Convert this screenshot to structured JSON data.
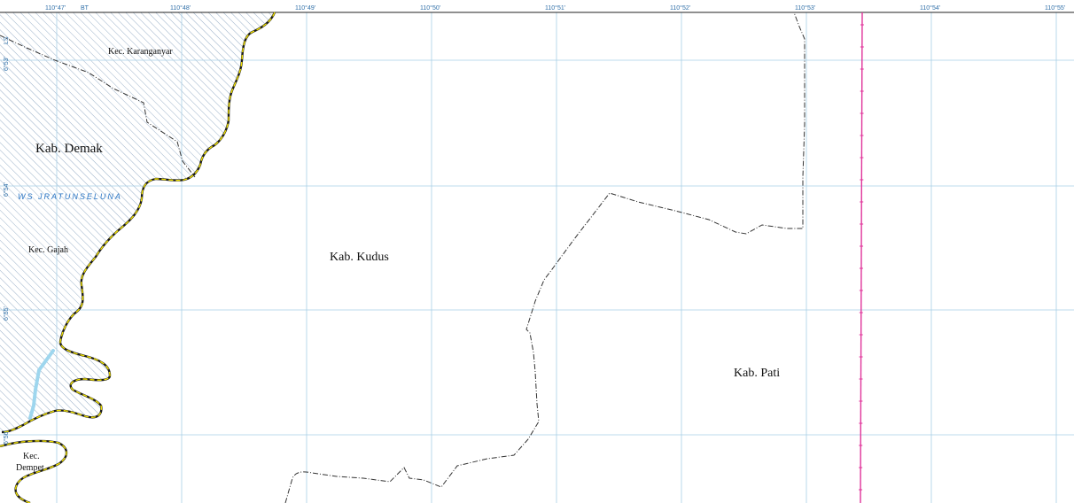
{
  "map": {
    "colors": {
      "grid": "#a8cfe6",
      "hatch": "#8fa7c2",
      "coast": "#1a1a1a",
      "coast_highlight": "#f2e200",
      "boundary": "#333333",
      "pink_line": "#e0339a",
      "river": "#9ed6ee",
      "tick_text": "#2f6fa8",
      "ws_text": "#2e78c6"
    },
    "top_ticks": [
      {
        "id": "lon-110-47",
        "label": "110°47'"
      },
      {
        "id": "lon-bt",
        "label": "BT"
      },
      {
        "id": "lon-110-48",
        "label": "110°48'"
      },
      {
        "id": "lon-110-49",
        "label": "110°49'"
      },
      {
        "id": "lon-110-50",
        "label": "110°50'"
      },
      {
        "id": "lon-110-51",
        "label": "110°51'"
      },
      {
        "id": "lon-110-52",
        "label": "110°52'"
      },
      {
        "id": "lon-110-53",
        "label": "110°53'"
      },
      {
        "id": "lon-110-54",
        "label": "110°54'"
      },
      {
        "id": "lon-110-55",
        "label": "110°55'"
      }
    ],
    "left_ticks": [
      {
        "id": "lat-ls",
        "label": "LS"
      },
      {
        "id": "lat-6-53",
        "label": "6°53'"
      },
      {
        "id": "lat-6-54",
        "label": "6°54'"
      },
      {
        "id": "lat-6-55",
        "label": "6°55'"
      },
      {
        "id": "lat-6-56",
        "label": "6°56'"
      }
    ],
    "labels": {
      "kec_karanganyar": "Kec. Karanganyar",
      "kab_demak": "Kab. Demak",
      "ws_jratunseluna": "WS JRATUNSELUNA",
      "kec_gajah": "Kec. Gajah",
      "kab_kudus": "Kab. Kudus",
      "kab_pati": "Kab. Pati",
      "kec_dempet_line1": "Kec.",
      "kec_dempet_line2": "Dempet"
    }
  }
}
